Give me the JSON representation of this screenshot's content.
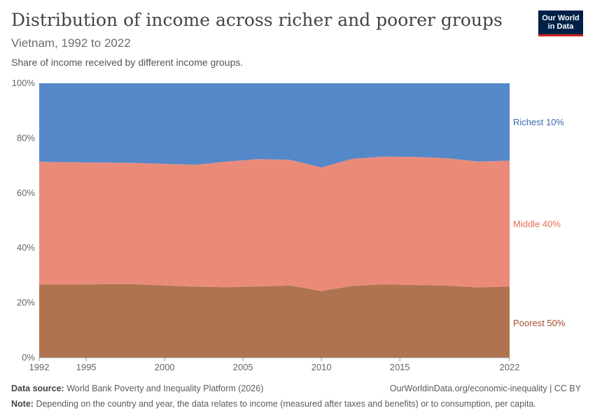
{
  "header": {
    "title": "Distribution of income across richer and poorer groups",
    "subtitle": "Vietnam, 1992 to 2022",
    "description": "Share of income received by different income groups."
  },
  "logo": {
    "line1": "Our World",
    "line2": "in Data",
    "bg_color": "#002147",
    "accent_color": "#ce261e"
  },
  "footer": {
    "source_label": "Data source:",
    "source_text": "World Bank Poverty and Inequality Platform (2026)",
    "url": "OurWorldinData.org/economic-inequality | CC BY",
    "note_label": "Note:",
    "note_text": "Depending on the country and year, the data relates to income (measured after taxes and benefits) or to consumption, per capita."
  },
  "chart_data": {
    "type": "area",
    "stacked": true,
    "x": [
      1992,
      1993,
      1998,
      2002,
      2004,
      2006,
      2008,
      2010,
      2012,
      2014,
      2016,
      2018,
      2020,
      2022
    ],
    "series": [
      {
        "name": "Poorest 50%",
        "color": "#b0734f",
        "label_color": "#a14d28",
        "values": [
          26.6,
          26.7,
          26.8,
          25.9,
          25.7,
          26.0,
          26.3,
          24.3,
          26.2,
          26.7,
          26.5,
          26.3,
          25.6,
          26.0
        ]
      },
      {
        "name": "Middle 40%",
        "color": "#ea8b7a",
        "label_color": "#e56e5a",
        "values": [
          44.8,
          44.6,
          44.2,
          44.4,
          45.8,
          46.4,
          45.8,
          45.0,
          46.3,
          46.6,
          46.7,
          46.4,
          45.9,
          45.8
        ]
      },
      {
        "name": "Richest 10%",
        "color": "#5588c8",
        "label_color": "#3a6aa8",
        "values": [
          28.6,
          28.7,
          29.0,
          29.7,
          28.5,
          27.6,
          27.9,
          30.7,
          27.5,
          26.7,
          26.8,
          27.3,
          28.5,
          28.2
        ]
      }
    ],
    "x_ticks": [
      "1992",
      "1995",
      "2000",
      "2005",
      "2010",
      "2015",
      "2022"
    ],
    "y_ticks": [
      "0%",
      "20%",
      "40%",
      "60%",
      "80%",
      "100%"
    ],
    "xlim": [
      1992,
      2022
    ],
    "ylim": [
      0,
      100
    ],
    "grid": "horizontal-dashed",
    "legend": "right-inline"
  }
}
